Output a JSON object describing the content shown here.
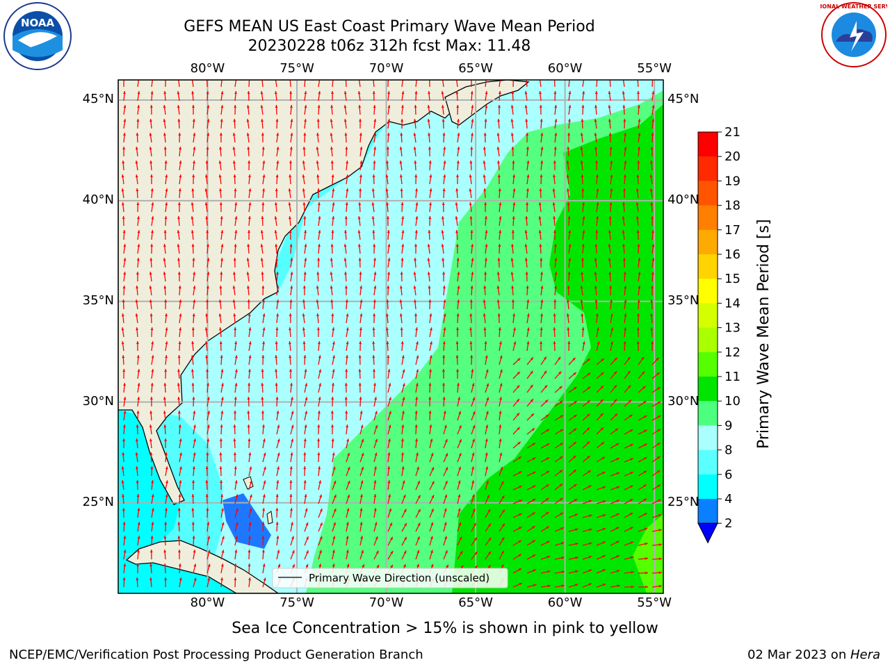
{
  "header": {
    "title_line1": "GEFS MEAN US East Coast Primary Wave Mean Period",
    "title_line2": "20230228 t06z 312h fcst   Max: 11.48",
    "left_logo_text": "NOAA",
    "right_logo_text": "NATIONAL WEATHER SERVICE"
  },
  "axes": {
    "lon_ticks": [
      "80°W",
      "75°W",
      "70°W",
      "65°W",
      "60°W",
      "55°W"
    ],
    "lat_ticks": [
      "45°N",
      "40°N",
      "35°N",
      "30°N",
      "25°N"
    ],
    "lon_values": [
      -80,
      -75,
      -70,
      -65,
      -60,
      -55
    ],
    "lat_values": [
      45,
      40,
      35,
      30,
      25
    ],
    "lon_range": [
      -85,
      -54.5
    ],
    "lat_range": [
      20.5,
      46
    ]
  },
  "legend": {
    "label": "Primary Wave Direction (unscaled)"
  },
  "colorbar": {
    "label": "Primary Wave Mean Period [s]",
    "ticks": [
      "21",
      "20",
      "19",
      "18",
      "17",
      "16",
      "15",
      "14",
      "13",
      "12",
      "11",
      "10",
      "9",
      "8",
      "6",
      "4",
      "2"
    ],
    "colors": [
      "#ff0000",
      "#ff2a00",
      "#ff5500",
      "#ff7f00",
      "#ffaa00",
      "#ffd400",
      "#ffff00",
      "#d4ff00",
      "#aaff00",
      "#55ff00",
      "#00e400",
      "#4cff7f",
      "#aaffff",
      "#5cffff",
      "#00ffff",
      "#0a7fff",
      "#0000ff"
    ]
  },
  "colors": {
    "land": "#efeedc",
    "period_4_6": "#00ffff",
    "period_6_8": "#55ffff",
    "period_8_9": "#aaffff",
    "period_9_10": "#55ff7f",
    "period_10_11": "#00ea00",
    "period_2_4": "#1e78ff",
    "arrow": "#ff0000",
    "grid": "#b0b0b0"
  },
  "notes": {
    "ice_note": "Sea Ice Concentration > 15% is shown in pink to yellow",
    "credit_left": "NCEP/EMC/Verification Post Processing Product Generation Branch",
    "credit_right_prefix": "02 Mar 2023 on ",
    "credit_right_machine": "Hera"
  }
}
